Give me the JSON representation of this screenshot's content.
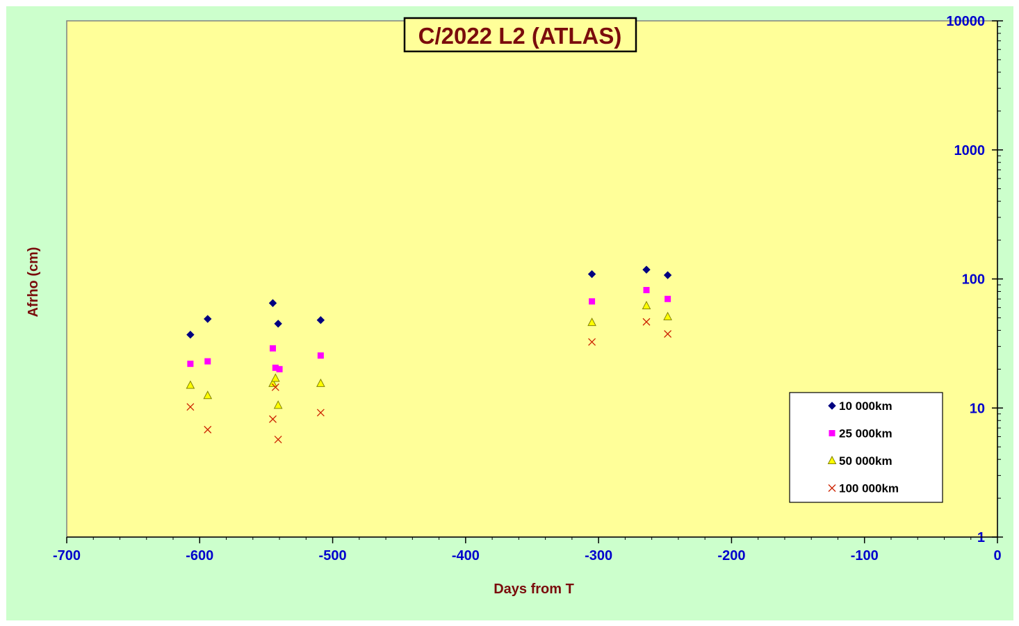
{
  "chart_data": {
    "type": "scatter",
    "title": "C/2022 L2 (ATLAS)",
    "xlabel": "Days from T",
    "ylabel": "Afrho (cm)",
    "xlim": [
      -700,
      0
    ],
    "ylim": [
      1,
      10000
    ],
    "yscale": "log",
    "x_ticks": [
      -700,
      -600,
      -500,
      -400,
      -300,
      -200,
      -100,
      0
    ],
    "y_ticks": [
      1,
      10,
      100,
      1000,
      10000
    ],
    "y_axis_side": "right",
    "grid": false,
    "legend_position": "bottom-right",
    "colors": {
      "page_background": "#ccffcc",
      "plot_background": "#ffff99",
      "tick_labels": "#0000cc",
      "titles": "#7a0c0c"
    },
    "series": [
      {
        "name": "10 000km",
        "marker": "diamond",
        "color": "#000080",
        "x": [
          -607,
          -594,
          -545,
          -541,
          -509,
          -305,
          -264,
          -248
        ],
        "y": [
          37,
          49,
          65,
          45,
          48,
          109,
          118,
          107
        ]
      },
      {
        "name": "25 000km",
        "marker": "square",
        "color": "#ff00ff",
        "x": [
          -607,
          -594,
          -545,
          -543,
          -540,
          -509,
          -305,
          -264,
          -248
        ],
        "y": [
          22,
          23,
          29,
          20.5,
          20,
          25.5,
          67,
          82,
          70
        ]
      },
      {
        "name": "50 000km",
        "marker": "triangle",
        "color": "#ffff00",
        "stroke": "#808000",
        "x": [
          -607,
          -594,
          -545,
          -543,
          -541,
          -509,
          -305,
          -264,
          -248
        ],
        "y": [
          15,
          12.5,
          15.5,
          17,
          10.5,
          15.5,
          46,
          62,
          51
        ]
      },
      {
        "name": "100 000km",
        "marker": "x",
        "color": "#cc2200",
        "x": [
          -607,
          -594,
          -545,
          -543,
          -541,
          -509,
          -305,
          -264,
          -248
        ],
        "y": [
          10.2,
          6.8,
          8.2,
          14.5,
          5.7,
          9.2,
          32.5,
          46.5,
          37.5
        ]
      }
    ]
  }
}
